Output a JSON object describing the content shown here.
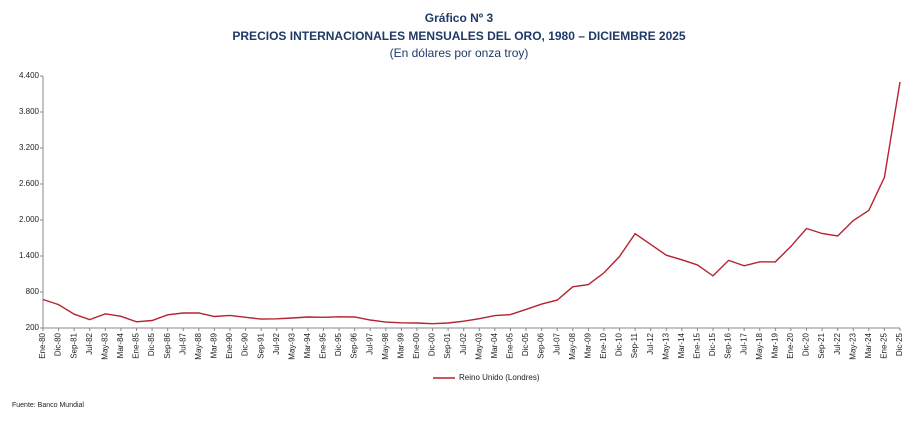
{
  "chart_data": {
    "type": "line",
    "title": "Gráfico Nº 3",
    "subtitle": "PRECIOS INTERNACIONALES MENSUALES DEL ORO, 1980 – DICIEMBRE 2025",
    "unit_note": "(En dólares por onza troy)",
    "source": "Fuente: Banco Mundial",
    "categories": [
      "Ene-80",
      "Dic-80",
      "Sep-81",
      "Jul-82",
      "May-83",
      "Mar-84",
      "Ene-85",
      "Dic-85",
      "Sep-86",
      "Jul-87",
      "May-88",
      "Mar-89",
      "Ene-90",
      "Dic-90",
      "Sep-91",
      "Jul-92",
      "May-93",
      "Mar-94",
      "Ene-95",
      "Dic-95",
      "Sep-96",
      "Jul-97",
      "May-98",
      "Mar-99",
      "Ene-00",
      "Dic-00",
      "Sep-01",
      "Jul-02",
      "May-03",
      "Mar-04",
      "Ene-05",
      "Dic-05",
      "Sep-06",
      "Jul-07",
      "May-08",
      "Mar-09",
      "Ene-10",
      "Dic-10",
      "Sep-11",
      "Jul-12",
      "May-13",
      "Mar-14",
      "Ene-15",
      "Dic-15",
      "Sep-16",
      "Jul-17",
      "May-18",
      "Mar-19",
      "Ene-20",
      "Dic-20",
      "Sep-21",
      "Jul-22",
      "May-23",
      "Mar-24",
      "Ene-25",
      "Dic-25"
    ],
    "series": [
      {
        "name": "Reino Unido (Londres)",
        "color": "#b5232e",
        "values": [
          675,
          590,
          430,
          340,
          437,
          395,
          303,
          325,
          420,
          450,
          451,
          391,
          410,
          378,
          349,
          353,
          367,
          384,
          379,
          387,
          383,
          334,
          299,
          286,
          284,
          272,
          283,
          314,
          355,
          406,
          424,
          510,
          598,
          665,
          887,
          924,
          1118,
          1391,
          1772,
          1594,
          1414,
          1336,
          1251,
          1068,
          1326,
          1236,
          1303,
          1301,
          1560,
          1858,
          1775,
          1733,
          1992,
          2160,
          2710,
          4300
        ]
      }
    ],
    "ylim": [
      200,
      4400
    ],
    "yticks": [
      200,
      800,
      {
        "value": 1400,
        "label": "1.400"
      },
      {
        "value": 2000,
        "label": "2.000"
      },
      {
        "value": 2600,
        "label": "2.600"
      },
      {
        "value": 3200,
        "label": "3.200"
      },
      {
        "value": 3800,
        "label": "3.800"
      },
      {
        "value": 4400,
        "label": "4.400"
      }
    ],
    "legend": "bottom"
  }
}
